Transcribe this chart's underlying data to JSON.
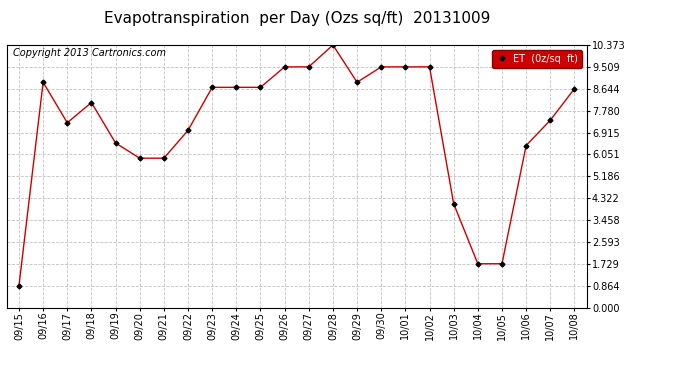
{
  "title": "Evapotranspiration  per Day (Ozs sq/ft)  20131009",
  "copyright": "Copyright 2013 Cartronics.com",
  "legend_label": "ET  (0z/sq  ft)",
  "dates": [
    "09/15",
    "09/16",
    "09/17",
    "09/18",
    "09/19",
    "09/20",
    "09/21",
    "09/22",
    "09/23",
    "09/24",
    "09/25",
    "09/26",
    "09/27",
    "09/28",
    "09/29",
    "09/30",
    "10/01",
    "10/02",
    "10/03",
    "10/04",
    "10/05",
    "10/06",
    "10/07",
    "10/08"
  ],
  "values": [
    0.864,
    8.9,
    7.3,
    8.1,
    6.5,
    5.9,
    5.9,
    7.0,
    8.7,
    8.7,
    8.7,
    9.509,
    9.509,
    10.373,
    8.9,
    9.509,
    9.509,
    9.509,
    4.1,
    1.729,
    1.729,
    6.4,
    7.4,
    8.644
  ],
  "yticks": [
    0.0,
    0.864,
    1.729,
    2.593,
    3.458,
    4.322,
    5.186,
    6.051,
    6.915,
    7.78,
    8.644,
    9.509,
    10.373
  ],
  "ymin": 0.0,
  "ymax": 10.373,
  "line_color": "#cc0000",
  "marker": "D",
  "marker_size": 2.5,
  "marker_color": "#000000",
  "background_color": "#ffffff",
  "grid_color": "#bbbbbb",
  "title_fontsize": 11,
  "copyright_fontsize": 7,
  "tick_fontsize": 7,
  "legend_bg": "#cc0000",
  "legend_text_color": "#ffffff"
}
